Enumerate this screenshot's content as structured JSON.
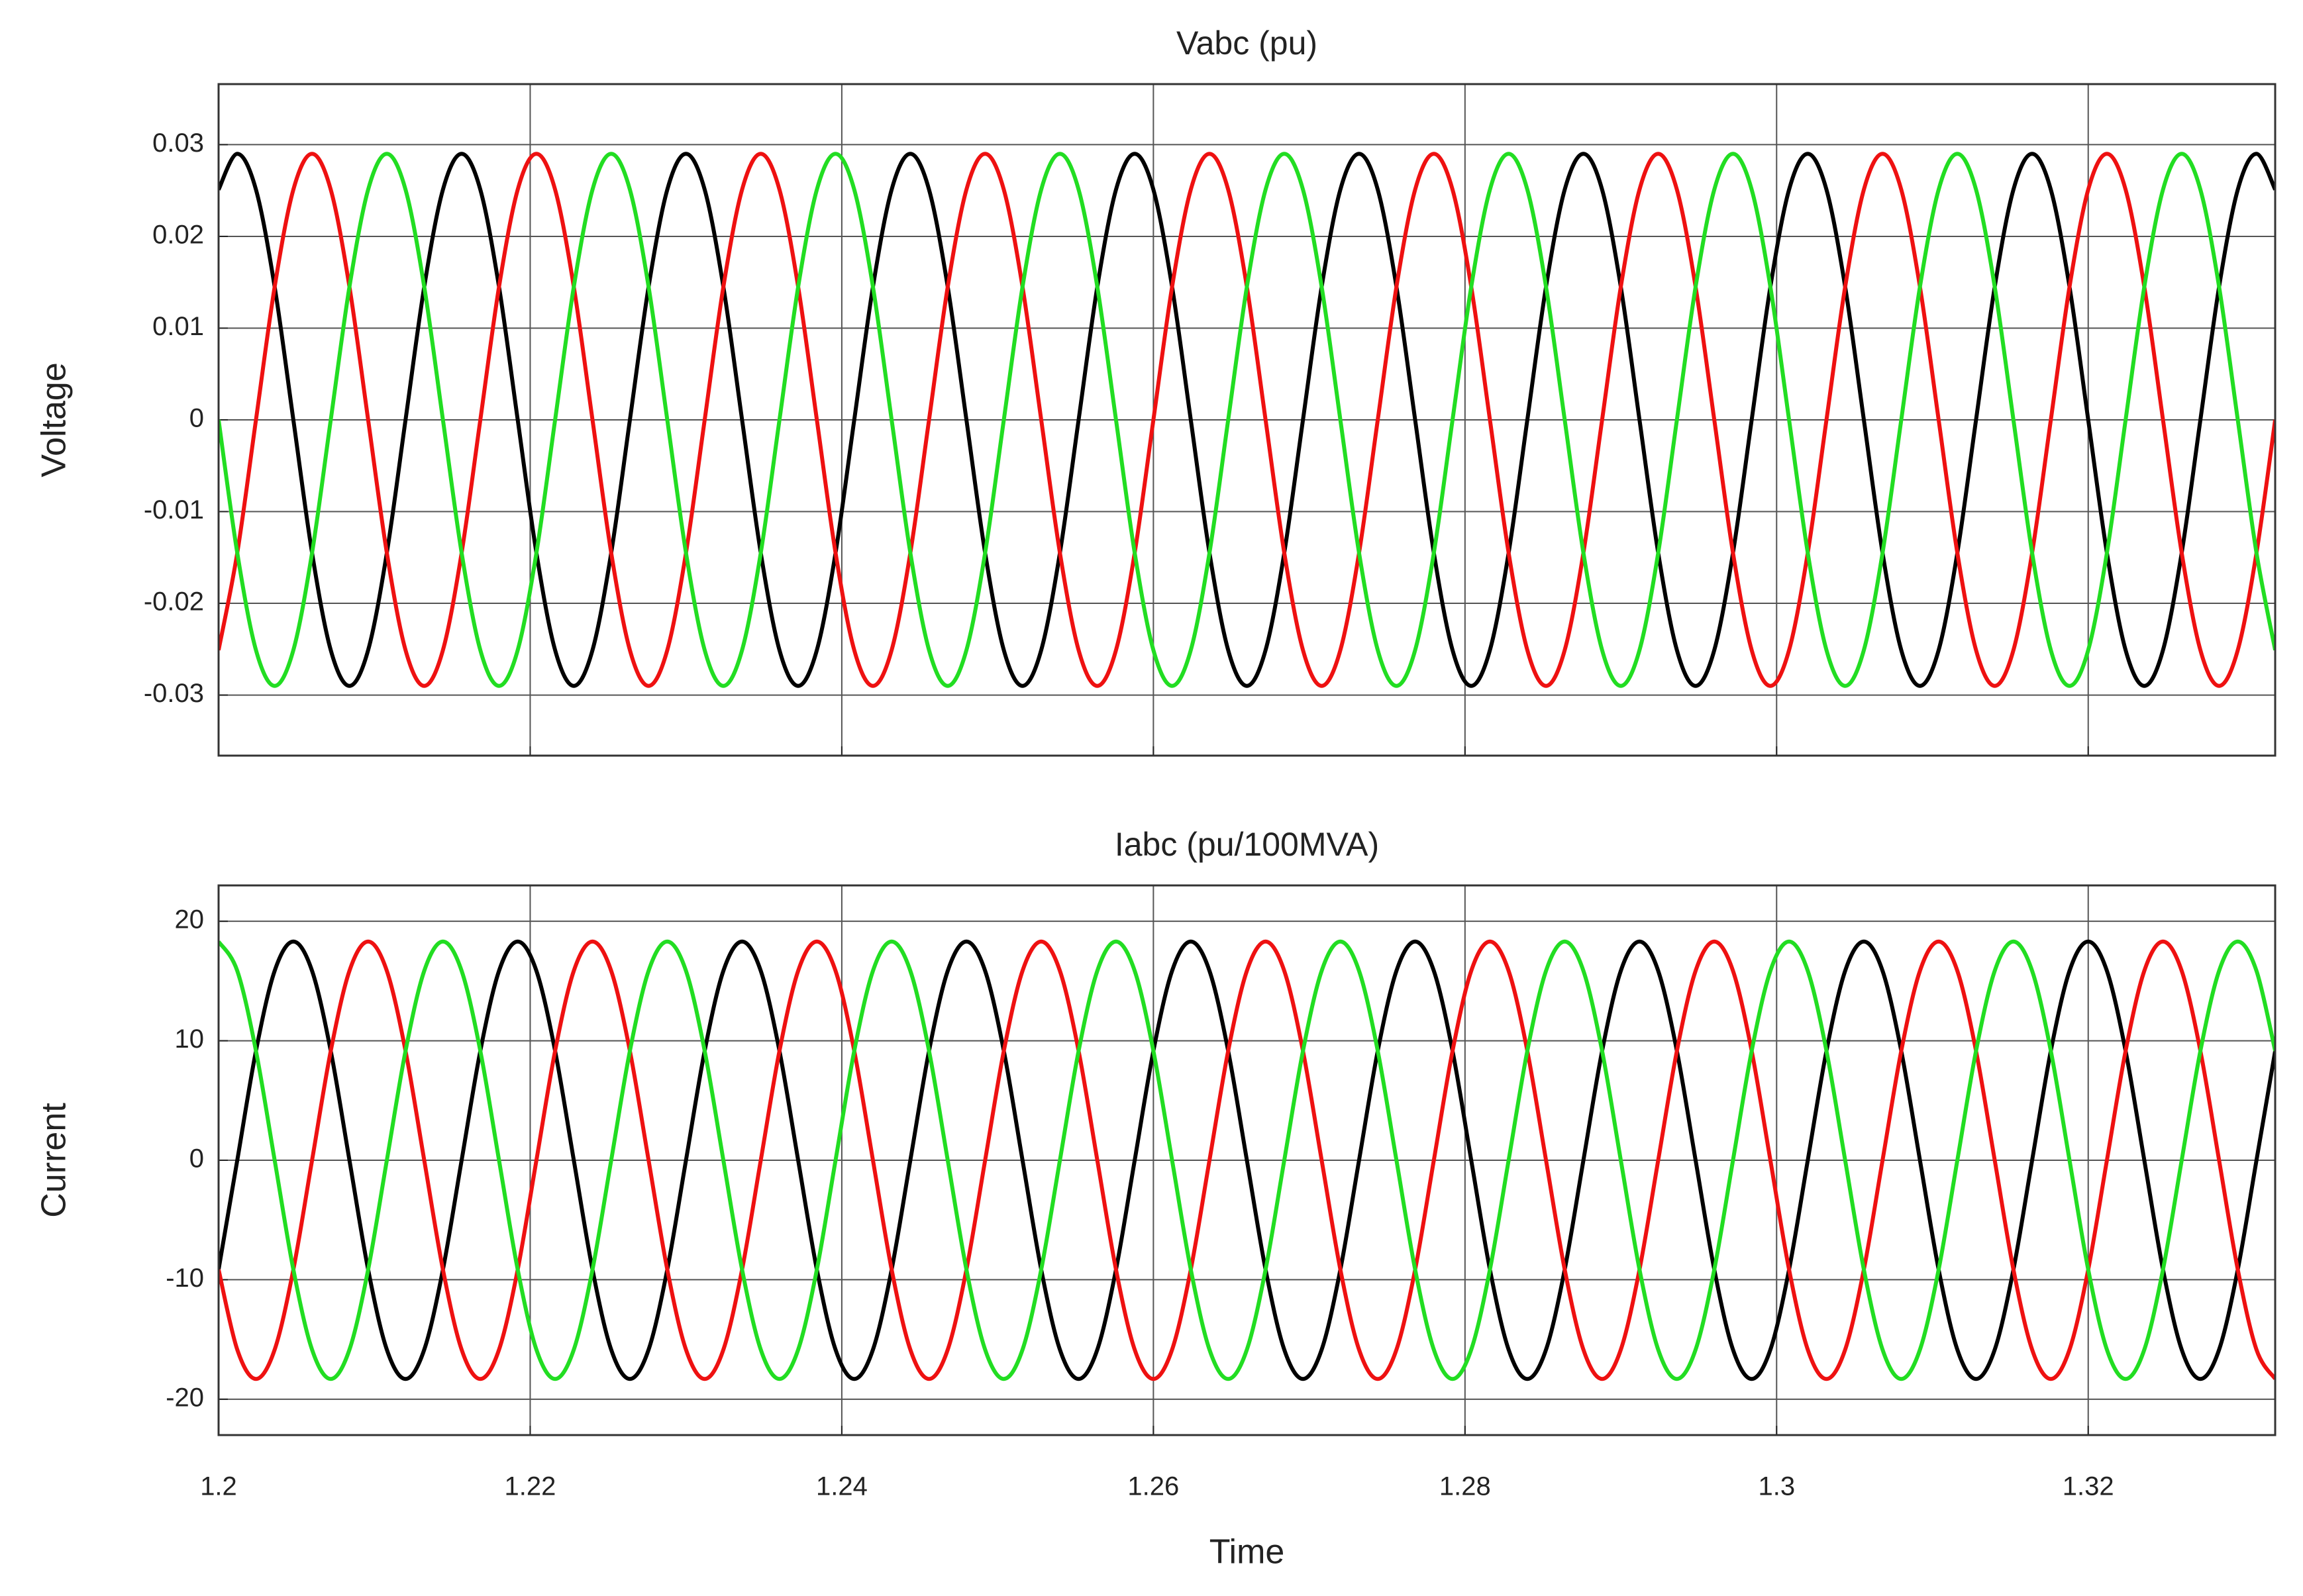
{
  "chart_data": [
    {
      "type": "line",
      "title": "Vabc (pu)",
      "y_label": "Voltage",
      "grid": true,
      "xlim": [
        1.2,
        1.332
      ],
      "ylim": [
        -0.0366,
        0.0366
      ],
      "yticks": [
        0.03,
        0.02,
        0.01,
        0,
        -0.01,
        -0.02,
        -0.03
      ],
      "x": [
        1.2,
        1.2012,
        1.2024,
        1.2036,
        1.2048,
        1.206,
        1.2072,
        1.2084,
        1.2096,
        1.2108,
        1.212,
        1.2132,
        1.2144,
        1.2156,
        1.2168,
        1.218,
        1.2192,
        1.2204,
        1.2216,
        1.2228,
        1.224,
        1.2252,
        1.2264,
        1.2276,
        1.2288,
        1.23,
        1.2312,
        1.2324,
        1.2336,
        1.2348,
        1.236,
        1.2372,
        1.2384,
        1.2396,
        1.2408,
        1.242,
        1.2432,
        1.2444,
        1.2456,
        1.2468,
        1.248,
        1.2492,
        1.2504,
        1.2516,
        1.2528,
        1.254,
        1.2552,
        1.2564,
        1.2576,
        1.2588,
        1.26,
        1.2612,
        1.2624,
        1.2636,
        1.2648,
        1.266,
        1.2672,
        1.2684,
        1.2696,
        1.2708,
        1.272,
        1.2732,
        1.2744,
        1.2756,
        1.2768,
        1.278,
        1.2792,
        1.2804,
        1.2816,
        1.2828,
        1.284,
        1.2852,
        1.2864,
        1.2876,
        1.2888,
        1.29,
        1.2912,
        1.2924,
        1.2936,
        1.2948,
        1.296,
        1.2972,
        1.2984,
        1.2996,
        1.3008,
        1.302,
        1.3032,
        1.3044,
        1.3056,
        1.3068,
        1.308,
        1.3092,
        1.3104,
        1.3116,
        1.3128,
        1.314,
        1.3152,
        1.3164,
        1.3176,
        1.3188,
        1.32,
        1.3212,
        1.3224,
        1.3236,
        1.3248,
        1.326,
        1.3272,
        1.3284,
        1.3296,
        1.3308,
        1.332
      ],
      "series": [
        {
          "color": "#000000",
          "values": [
            0.0251,
            0.029,
            0.0251,
            0.0145,
            0,
            -0.0145,
            -0.0251,
            -0.029,
            -0.0251,
            -0.0145,
            0,
            0.0145,
            0.0251,
            0.029,
            0.0251,
            0.0145,
            0,
            -0.0145,
            -0.0251,
            -0.029,
            -0.0251,
            -0.0145,
            0,
            0.0145,
            0.0251,
            0.029,
            0.0251,
            0.0145,
            0,
            -0.0145,
            -0.0251,
            -0.029,
            -0.0251,
            -0.0145,
            0,
            0.0145,
            0.0251,
            0.029,
            0.0251,
            0.0145,
            0,
            -0.0145,
            -0.0251,
            -0.029,
            -0.0251,
            -0.0145,
            0,
            0.0145,
            0.0251,
            0.029,
            0.0251,
            0.0145,
            0,
            -0.0145,
            -0.0251,
            -0.029,
            -0.0251,
            -0.0145,
            0,
            0.0145,
            0.0251,
            0.029,
            0.0251,
            0.0145,
            0,
            -0.0145,
            -0.0251,
            -0.029,
            -0.0251,
            -0.0145,
            0,
            0.0145,
            0.0251,
            0.029,
            0.0251,
            0.0145,
            0,
            -0.0145,
            -0.0251,
            -0.029,
            -0.0251,
            -0.0145,
            0,
            0.0145,
            0.0251,
            0.029,
            0.0251,
            0.0145,
            0,
            -0.0145,
            -0.0251,
            -0.029,
            -0.0251,
            -0.0145,
            0,
            0.0145,
            0.0251,
            0.029,
            0.0251,
            0.0145,
            0,
            -0.0145,
            -0.0251,
            -0.029,
            -0.0251,
            -0.0145,
            0,
            0.0145,
            0.0251,
            0.029,
            0.0251
          ]
        },
        {
          "color": "#ee1111",
          "values": [
            -0.0251,
            -0.0145,
            0,
            0.0145,
            0.0251,
            0.029,
            0.0251,
            0.0145,
            0,
            -0.0145,
            -0.0251,
            -0.029,
            -0.0251,
            -0.0145,
            0,
            0.0145,
            0.0251,
            0.029,
            0.0251,
            0.0145,
            0,
            -0.0145,
            -0.0251,
            -0.029,
            -0.0251,
            -0.0145,
            0,
            0.0145,
            0.0251,
            0.029,
            0.0251,
            0.0145,
            0,
            -0.0145,
            -0.0251,
            -0.029,
            -0.0251,
            -0.0145,
            0,
            0.0145,
            0.0251,
            0.029,
            0.0251,
            0.0145,
            0,
            -0.0145,
            -0.0251,
            -0.029,
            -0.0251,
            -0.0145,
            0,
            0.0145,
            0.0251,
            0.029,
            0.0251,
            0.0145,
            0,
            -0.0145,
            -0.0251,
            -0.029,
            -0.0251,
            -0.0145,
            0,
            0.0145,
            0.0251,
            0.029,
            0.0251,
            0.0145,
            0,
            -0.0145,
            -0.0251,
            -0.029,
            -0.0251,
            -0.0145,
            0,
            0.0145,
            0.0251,
            0.029,
            0.0251,
            0.0145,
            0,
            -0.0145,
            -0.0251,
            -0.029,
            -0.0251,
            -0.0145,
            0,
            0.0145,
            0.0251,
            0.029,
            0.0251,
            0.0145,
            0,
            -0.0145,
            -0.0251,
            -0.029,
            -0.0251,
            -0.0145,
            0,
            0.0145,
            0.0251,
            0.029,
            0.0251,
            0.0145,
            0,
            -0.0145,
            -0.0251,
            -0.029,
            -0.0251,
            -0.0145,
            0
          ]
        },
        {
          "color": "#22dd22",
          "values": [
            0,
            -0.0145,
            -0.0251,
            -0.029,
            -0.0251,
            -0.0145,
            0,
            0.0145,
            0.0251,
            0.029,
            0.0251,
            0.0145,
            0,
            -0.0145,
            -0.0251,
            -0.029,
            -0.0251,
            -0.0145,
            0,
            0.0145,
            0.0251,
            0.029,
            0.0251,
            0.0145,
            0,
            -0.0145,
            -0.0251,
            -0.029,
            -0.0251,
            -0.0145,
            0,
            0.0145,
            0.0251,
            0.029,
            0.0251,
            0.0145,
            0,
            -0.0145,
            -0.0251,
            -0.029,
            -0.0251,
            -0.0145,
            0,
            0.0145,
            0.0251,
            0.029,
            0.0251,
            0.0145,
            0,
            -0.0145,
            -0.0251,
            -0.029,
            -0.0251,
            -0.0145,
            0,
            0.0145,
            0.0251,
            0.029,
            0.0251,
            0.0145,
            0,
            -0.0145,
            -0.0251,
            -0.029,
            -0.0251,
            -0.0145,
            0,
            0.0145,
            0.0251,
            0.029,
            0.0251,
            0.0145,
            0,
            -0.0145,
            -0.0251,
            -0.029,
            -0.0251,
            -0.0145,
            0,
            0.0145,
            0.0251,
            0.029,
            0.0251,
            0.0145,
            0,
            -0.0145,
            -0.0251,
            -0.029,
            -0.0251,
            -0.0145,
            0,
            0.0145,
            0.0251,
            0.029,
            0.0251,
            0.0145,
            0,
            -0.0145,
            -0.0251,
            -0.029,
            -0.0251,
            -0.0145,
            0,
            0.0145,
            0.0251,
            0.029,
            0.0251,
            0.0145,
            0,
            -0.0145,
            -0.0251
          ]
        }
      ]
    },
    {
      "type": "line",
      "title": "Iabc (pu/100MVA)",
      "x_label": "Time",
      "y_label": "Current",
      "grid": true,
      "xlim": [
        1.2,
        1.332
      ],
      "xticks": [
        1.2,
        1.22,
        1.24,
        1.26,
        1.28,
        1.3,
        1.32
      ],
      "ylim": [
        -23,
        23
      ],
      "yticks": [
        20,
        10,
        0,
        -10,
        -20
      ],
      "x": [
        1.2,
        1.2012,
        1.2024,
        1.2036,
        1.2048,
        1.206,
        1.2072,
        1.2084,
        1.2096,
        1.2108,
        1.212,
        1.2132,
        1.2144,
        1.2156,
        1.2168,
        1.218,
        1.2192,
        1.2204,
        1.2216,
        1.2228,
        1.224,
        1.2252,
        1.2264,
        1.2276,
        1.2288,
        1.23,
        1.2312,
        1.2324,
        1.2336,
        1.2348,
        1.236,
        1.2372,
        1.2384,
        1.2396,
        1.2408,
        1.242,
        1.2432,
        1.2444,
        1.2456,
        1.2468,
        1.248,
        1.2492,
        1.2504,
        1.2516,
        1.2528,
        1.254,
        1.2552,
        1.2564,
        1.2576,
        1.2588,
        1.26,
        1.2612,
        1.2624,
        1.2636,
        1.2648,
        1.266,
        1.2672,
        1.2684,
        1.2696,
        1.2708,
        1.272,
        1.2732,
        1.2744,
        1.2756,
        1.2768,
        1.278,
        1.2792,
        1.2804,
        1.2816,
        1.2828,
        1.284,
        1.2852,
        1.2864,
        1.2876,
        1.2888,
        1.29,
        1.2912,
        1.2924,
        1.2936,
        1.2948,
        1.296,
        1.2972,
        1.2984,
        1.2996,
        1.3008,
        1.302,
        1.3032,
        1.3044,
        1.3056,
        1.3068,
        1.308,
        1.3092,
        1.3104,
        1.3116,
        1.3128,
        1.314,
        1.3152,
        1.3164,
        1.3176,
        1.3188,
        1.32,
        1.3212,
        1.3224,
        1.3236,
        1.3248,
        1.326,
        1.3272,
        1.3284,
        1.3296,
        1.3308,
        1.332
      ],
      "series": [
        {
          "color": "#000000",
          "values": [
            -9.15,
            0,
            9.15,
            15.85,
            18.3,
            15.85,
            9.15,
            0,
            -9.15,
            -15.85,
            -18.3,
            -15.85,
            -9.15,
            0,
            9.15,
            15.85,
            18.3,
            15.85,
            9.15,
            0,
            -9.15,
            -15.85,
            -18.3,
            -15.85,
            -9.15,
            0,
            9.15,
            15.85,
            18.3,
            15.85,
            9.15,
            0,
            -9.15,
            -15.85,
            -18.3,
            -15.85,
            -9.15,
            0,
            9.15,
            15.85,
            18.3,
            15.85,
            9.15,
            0,
            -9.15,
            -15.85,
            -18.3,
            -15.85,
            -9.15,
            0,
            9.15,
            15.85,
            18.3,
            15.85,
            9.15,
            0,
            -9.15,
            -15.85,
            -18.3,
            -15.85,
            -9.15,
            0,
            9.15,
            15.85,
            18.3,
            15.85,
            9.15,
            0,
            -9.15,
            -15.85,
            -18.3,
            -15.85,
            -9.15,
            0,
            9.15,
            15.85,
            18.3,
            15.85,
            9.15,
            0,
            -9.15,
            -15.85,
            -18.3,
            -15.85,
            -9.15,
            0,
            9.15,
            15.85,
            18.3,
            15.85,
            9.15,
            0,
            -9.15,
            -15.85,
            -18.3,
            -15.85,
            -9.15,
            0,
            9.15,
            15.85,
            18.3,
            15.85,
            9.15,
            0,
            -9.15,
            -15.85,
            -18.3,
            -15.85,
            -9.15,
            0,
            9.15
          ]
        },
        {
          "color": "#ee1111",
          "values": [
            -9.15,
            -15.85,
            -18.3,
            -15.85,
            -9.15,
            0,
            9.15,
            15.85,
            18.3,
            15.85,
            9.15,
            0,
            -9.15,
            -15.85,
            -18.3,
            -15.85,
            -9.15,
            0,
            9.15,
            15.85,
            18.3,
            15.85,
            9.15,
            0,
            -9.15,
            -15.85,
            -18.3,
            -15.85,
            -9.15,
            0,
            9.15,
            15.85,
            18.3,
            15.85,
            9.15,
            0,
            -9.15,
            -15.85,
            -18.3,
            -15.85,
            -9.15,
            0,
            9.15,
            15.85,
            18.3,
            15.85,
            9.15,
            0,
            -9.15,
            -15.85,
            -18.3,
            -15.85,
            -9.15,
            0,
            9.15,
            15.85,
            18.3,
            15.85,
            9.15,
            0,
            -9.15,
            -15.85,
            -18.3,
            -15.85,
            -9.15,
            0,
            9.15,
            15.85,
            18.3,
            15.85,
            9.15,
            0,
            -9.15,
            -15.85,
            -18.3,
            -15.85,
            -9.15,
            0,
            9.15,
            15.85,
            18.3,
            15.85,
            9.15,
            0,
            -9.15,
            -15.85,
            -18.3,
            -15.85,
            -9.15,
            0,
            9.15,
            15.85,
            18.3,
            15.85,
            9.15,
            0,
            -9.15,
            -15.85,
            -18.3,
            -15.85,
            -9.15,
            0,
            9.15,
            15.85,
            18.3,
            15.85,
            9.15,
            0,
            -9.15,
            -15.85,
            -18.3
          ]
        },
        {
          "color": "#22dd22",
          "values": [
            18.3,
            15.85,
            9.15,
            0,
            -9.15,
            -15.85,
            -18.3,
            -15.85,
            -9.15,
            0,
            9.15,
            15.85,
            18.3,
            15.85,
            9.15,
            0,
            -9.15,
            -15.85,
            -18.3,
            -15.85,
            -9.15,
            0,
            9.15,
            15.85,
            18.3,
            15.85,
            9.15,
            0,
            -9.15,
            -15.85,
            -18.3,
            -15.85,
            -9.15,
            0,
            9.15,
            15.85,
            18.3,
            15.85,
            9.15,
            0,
            -9.15,
            -15.85,
            -18.3,
            -15.85,
            -9.15,
            0,
            9.15,
            15.85,
            18.3,
            15.85,
            9.15,
            0,
            -9.15,
            -15.85,
            -18.3,
            -15.85,
            -9.15,
            0,
            9.15,
            15.85,
            18.3,
            15.85,
            9.15,
            0,
            -9.15,
            -15.85,
            -18.3,
            -15.85,
            -9.15,
            0,
            9.15,
            15.85,
            18.3,
            15.85,
            9.15,
            0,
            -9.15,
            -15.85,
            -18.3,
            -15.85,
            -9.15,
            0,
            9.15,
            15.85,
            18.3,
            15.85,
            9.15,
            0,
            -9.15,
            -15.85,
            -18.3,
            -15.85,
            -9.15,
            0,
            9.15,
            15.85,
            18.3,
            15.85,
            9.15,
            0,
            -9.15,
            -15.85,
            -18.3,
            -15.85,
            -9.15,
            0,
            9.15,
            15.85,
            18.3,
            15.85,
            9.15
          ]
        }
      ]
    }
  ]
}
